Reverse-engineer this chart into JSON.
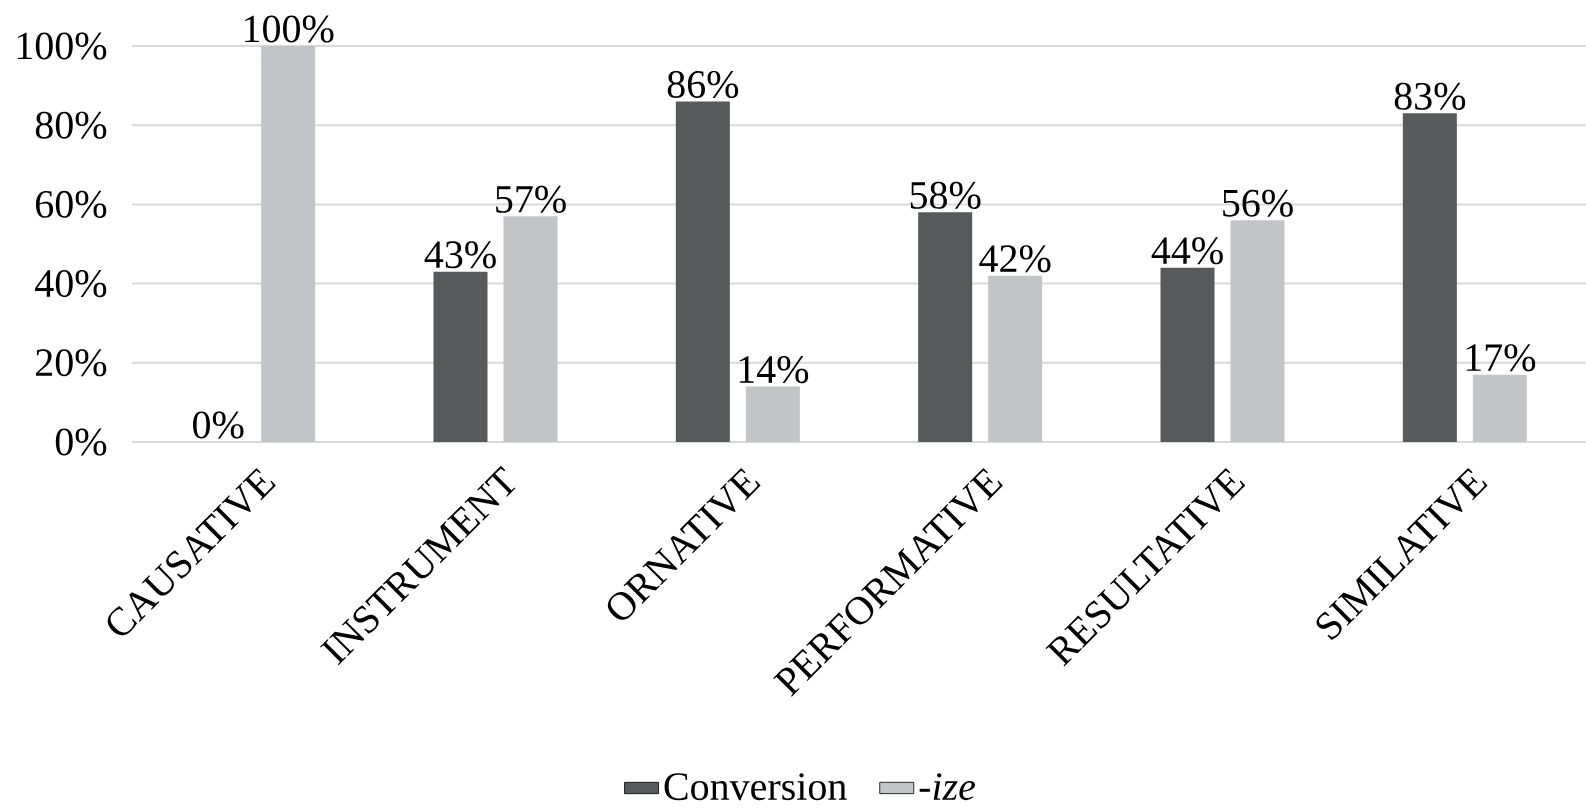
{
  "chart_data": {
    "type": "bar",
    "categories": [
      "CAUSATIVE",
      "INSTRUMENT",
      "ORNATIVE",
      "PERFORMATIVE",
      "RESULTATIVE",
      "SIMILATIVE"
    ],
    "series": [
      {
        "name": "Conversion",
        "color": "#58595b",
        "values": [
          0,
          43,
          86,
          58,
          44,
          83
        ],
        "value_labels": [
          "0%",
          "43%",
          "86%",
          "58%",
          "44%",
          "83%"
        ]
      },
      {
        "name": "*-ize*",
        "color": "#c3c4c7",
        "values": [
          100,
          57,
          14,
          42,
          56,
          17
        ],
        "value_labels": [
          "100%",
          "57%",
          "14%",
          "42%",
          "56%",
          "17%"
        ]
      }
    ],
    "ylim": [
      0,
      100
    ],
    "yticks": [
      {
        "value": 0,
        "label": "0%"
      },
      {
        "value": 20,
        "label": "20%"
      },
      {
        "value": 40,
        "label": "40%"
      },
      {
        "value": 60,
        "label": "60%"
      },
      {
        "value": 80,
        "label": "80%"
      },
      {
        "value": 100,
        "label": "100%"
      }
    ],
    "grid": "y",
    "legend": "bottom"
  }
}
